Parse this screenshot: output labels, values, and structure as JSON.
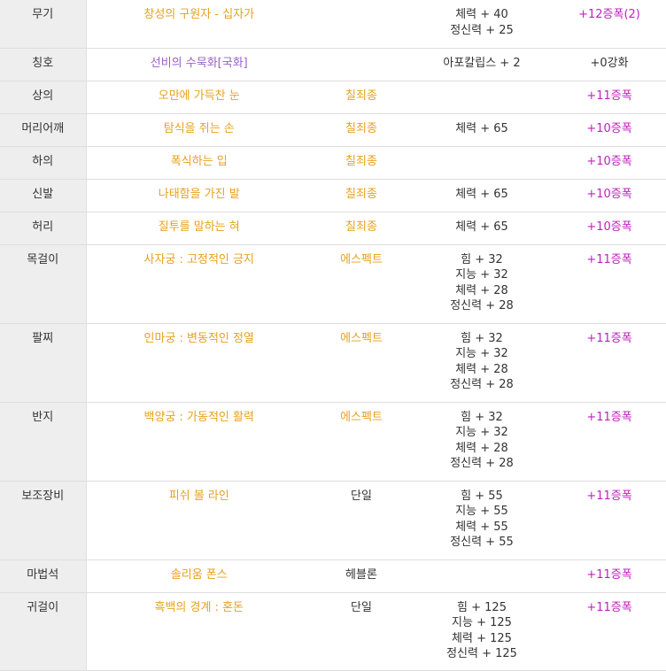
{
  "colors": {
    "orange": "#e6a11c",
    "purple": "#9a5fc8",
    "magenta": "#c020c0",
    "slot_bg": "#eeeeee",
    "text": "#333333"
  },
  "rows": [
    {
      "slot": "무기",
      "name": "창성의 구원자 - 십자가",
      "name_color": "orange",
      "set": "",
      "set_color": "plain",
      "stats": [
        "체력 + 40",
        "정신력 + 25"
      ],
      "reinforce": "+12증폭(2)",
      "reinforce_color": "magenta",
      "height": 54
    },
    {
      "slot": "칭호",
      "name": "선비의 수묵화[국화]",
      "name_color": "purple",
      "set": "",
      "set_color": "plain",
      "stats": [
        "아포칼립스 + 2"
      ],
      "reinforce": "+0강화",
      "reinforce_color": "plain",
      "height": 37
    },
    {
      "slot": "상의",
      "name": "오만에 가득찬 눈",
      "name_color": "orange",
      "set": "칠죄종",
      "set_color": "orange",
      "stats": [],
      "reinforce": "+11증폭",
      "reinforce_color": "magenta",
      "height": 37
    },
    {
      "slot": "머리어깨",
      "name": "탐식을 쥐는 손",
      "name_color": "orange",
      "set": "칠죄종",
      "set_color": "orange",
      "stats": [
        "체력 + 65"
      ],
      "reinforce": "+10증폭",
      "reinforce_color": "magenta",
      "height": 37
    },
    {
      "slot": "하의",
      "name": "폭식하는 입",
      "name_color": "orange",
      "set": "칠죄종",
      "set_color": "orange",
      "stats": [],
      "reinforce": "+10증폭",
      "reinforce_color": "magenta",
      "height": 37
    },
    {
      "slot": "신발",
      "name": "나태함을 가진 발",
      "name_color": "orange",
      "set": "칠죄종",
      "set_color": "orange",
      "stats": [
        "체력 + 65"
      ],
      "reinforce": "+10증폭",
      "reinforce_color": "magenta",
      "height": 37
    },
    {
      "slot": "허리",
      "name": "질투를 말하는 혀",
      "name_color": "orange",
      "set": "칠죄종",
      "set_color": "orange",
      "stats": [
        "체력 + 65"
      ],
      "reinforce": "+10증폭",
      "reinforce_color": "magenta",
      "height": 37
    },
    {
      "slot": "목걸이",
      "name": "사자궁 : 고정적인 긍지",
      "name_color": "orange",
      "set": "에스펙트",
      "set_color": "orange",
      "stats": [
        "힘 + 32",
        "지능 + 32",
        "체력 + 28",
        "정신력 + 28"
      ],
      "reinforce": "+11증폭",
      "reinforce_color": "magenta",
      "height": 89
    },
    {
      "slot": "팔찌",
      "name": "인마궁 : 변동적인 정열",
      "name_color": "orange",
      "set": "에스펙트",
      "set_color": "orange",
      "stats": [
        "힘 + 32",
        "지능 + 32",
        "체력 + 28",
        "정신력 + 28"
      ],
      "reinforce": "+11증폭",
      "reinforce_color": "magenta",
      "height": 89
    },
    {
      "slot": "반지",
      "name": "백양궁 : 가동적인 활력",
      "name_color": "orange",
      "set": "에스펙트",
      "set_color": "orange",
      "stats": [
        "힘 + 32",
        "지능 + 32",
        "체력 + 28",
        "정신력 + 28"
      ],
      "reinforce": "+11증폭",
      "reinforce_color": "magenta",
      "height": 89
    },
    {
      "slot": "보조장비",
      "name": "피쉬 볼 라인",
      "name_color": "orange",
      "set": "단일",
      "set_color": "plain",
      "stats": [
        "힘 + 55",
        "지능 + 55",
        "체력 + 55",
        "정신력 + 55"
      ],
      "reinforce": "+11증폭",
      "reinforce_color": "magenta",
      "height": 89
    },
    {
      "slot": "마법석",
      "name": "솔리움 폰스",
      "name_color": "orange",
      "set": "헤블론",
      "set_color": "plain",
      "stats": [],
      "reinforce": "+11증폭",
      "reinforce_color": "magenta",
      "height": 37
    },
    {
      "slot": "귀걸이",
      "name": "흑백의 경계 : 혼돈",
      "name_color": "orange",
      "set": "단일",
      "set_color": "plain",
      "stats": [
        "힘 + 125",
        "지능 + 125",
        "체력 + 125",
        "정신력 + 125"
      ],
      "reinforce": "+11증폭",
      "reinforce_color": "magenta",
      "height": 88
    }
  ]
}
